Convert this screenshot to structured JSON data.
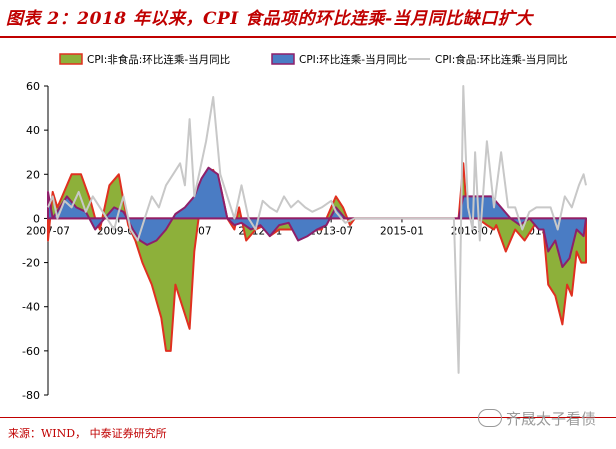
{
  "header": {
    "title": "图表 2：2018 年以来，CPI 食品项的环比连乘-当月同比缺口扩大"
  },
  "footer": {
    "source": "来源：WIND， 中泰证券研究所"
  },
  "watermark": {
    "text": "齐晟太子看债"
  },
  "chart_data": {
    "type": "area",
    "ylim": [
      -80,
      60
    ],
    "yticks": [
      -80,
      -60,
      -40,
      -20,
      0,
      20,
      40,
      60
    ],
    "xlim": [
      2007.5,
      2018.9
    ],
    "xticks": [
      {
        "x": 2007.5,
        "label": "2007-07"
      },
      {
        "x": 2009.0,
        "label": "2009-01"
      },
      {
        "x": 2010.5,
        "label": "2010-07"
      },
      {
        "x": 2012.0,
        "label": "2012-01"
      },
      {
        "x": 2013.5,
        "label": "2013-07"
      },
      {
        "x": 2015.0,
        "label": "2015-01"
      },
      {
        "x": 2016.5,
        "label": "2016-07"
      },
      {
        "x": 2018.0,
        "label": "2018-01"
      }
    ],
    "legend_position": "top",
    "legend": [
      {
        "key": "food_gap",
        "label": "CPI:非食品:环比连乘-当月同比",
        "color": "#8db03a",
        "edge": "#e03020",
        "kind": "area"
      },
      {
        "key": "total_gap",
        "label": "CPI:环比连乘-当月同比",
        "color": "#4a7cc4",
        "edge": "#8e1f6a",
        "kind": "area"
      },
      {
        "key": "food",
        "label": "CPI:食品:环比连乘-当月同比",
        "color": "#c8c8c8",
        "kind": "line"
      }
    ],
    "series": [
      {
        "key": "food_gap",
        "x": [
          2007.5,
          2007.6,
          2007.7,
          2007.8,
          2008.0,
          2008.2,
          2008.4,
          2008.5,
          2008.6,
          2008.8,
          2009.0,
          2009.1,
          2009.2,
          2009.35,
          2009.5,
          2009.7,
          2009.9,
          2010.0,
          2010.1,
          2010.2,
          2010.35,
          2010.5,
          2010.6,
          2010.75,
          2010.85,
          2011.0,
          2011.15,
          2011.3,
          2011.45,
          2011.55,
          2011.7,
          2011.9,
          2012.1,
          2012.2,
          2012.4,
          2012.7,
          2012.9,
          2013.1,
          2013.3,
          2013.5,
          2013.6,
          2013.75,
          2013.9,
          2014.0,
          2016.2,
          2016.3,
          2016.35,
          2016.45,
          2016.6,
          2016.8,
          2016.95,
          2017.0,
          2017.2,
          2017.4,
          2017.6,
          2017.75,
          2017.9,
          2018.0,
          2018.1,
          2018.25,
          2018.4,
          2018.5,
          2018.6,
          2018.7,
          2018.8,
          2018.9
        ],
        "y": [
          -10,
          12,
          5,
          10,
          20,
          20,
          8,
          0,
          -5,
          15,
          20,
          8,
          -3,
          -10,
          -20,
          -30,
          -45,
          -60,
          -60,
          -30,
          -40,
          -50,
          -15,
          10,
          20,
          22,
          15,
          0,
          -5,
          5,
          -10,
          -5,
          -3,
          -8,
          -5,
          -5,
          0,
          -5,
          -5,
          5,
          10,
          5,
          -3,
          0,
          0,
          25,
          10,
          5,
          0,
          -3,
          -5,
          -3,
          -15,
          -5,
          -10,
          -5,
          0,
          -5,
          -30,
          -35,
          -48,
          -30,
          -35,
          -15,
          -20,
          -20
        ]
      },
      {
        "key": "total_gap",
        "x": [
          2007.5,
          2007.6,
          2007.75,
          2007.9,
          2008.1,
          2008.3,
          2008.5,
          2008.7,
          2008.9,
          2009.1,
          2009.3,
          2009.45,
          2009.6,
          2009.8,
          2010.0,
          2010.2,
          2010.4,
          2010.6,
          2010.75,
          2010.9,
          2011.1,
          2011.3,
          2011.45,
          2011.6,
          2011.8,
          2012.0,
          2012.2,
          2012.4,
          2012.6,
          2012.8,
          2013.0,
          2013.2,
          2013.4,
          2013.6,
          2013.8,
          2014.0,
          2016.2,
          2016.3,
          2016.5,
          2016.7,
          2016.9,
          2017.1,
          2017.3,
          2017.5,
          2017.7,
          2017.9,
          2018.0,
          2018.1,
          2018.25,
          2018.4,
          2018.55,
          2018.7,
          2018.85,
          2018.9
        ],
        "y": [
          12,
          0,
          5,
          10,
          5,
          3,
          -5,
          0,
          5,
          3,
          -5,
          -10,
          -12,
          -10,
          -5,
          2,
          5,
          10,
          18,
          23,
          20,
          0,
          -3,
          -2,
          -5,
          -3,
          -8,
          -3,
          -2,
          -10,
          -8,
          -5,
          -3,
          5,
          0,
          0,
          0,
          10,
          10,
          10,
          10,
          5,
          0,
          -3,
          0,
          -5,
          -5,
          -15,
          -10,
          -22,
          -18,
          -5,
          -8,
          0
        ]
      },
      {
        "key": "food",
        "x": [
          2007.5,
          2007.6,
          2007.7,
          2007.85,
          2008.0,
          2008.15,
          2008.3,
          2008.45,
          2008.6,
          2008.75,
          2008.9,
          2009.0,
          2009.1,
          2009.25,
          2009.4,
          2009.55,
          2009.7,
          2009.85,
          2010.0,
          2010.15,
          2010.3,
          2010.4,
          2010.5,
          2010.6,
          2010.75,
          2010.85,
          2011.0,
          2011.15,
          2011.3,
          2011.45,
          2011.6,
          2011.75,
          2011.9,
          2012.05,
          2012.2,
          2012.35,
          2012.5,
          2012.65,
          2012.8,
          2012.95,
          2013.1,
          2013.3,
          2013.5,
          2013.6,
          2013.8,
          2014.0,
          2016.1,
          2016.2,
          2016.3,
          2016.35,
          2016.4,
          2016.5,
          2016.55,
          2016.65,
          2016.8,
          2016.95,
          2017.1,
          2017.25,
          2017.4,
          2017.55,
          2017.7,
          2017.85,
          2018.0,
          2018.15,
          2018.3,
          2018.45,
          2018.6,
          2018.75,
          2018.85,
          2018.9
        ],
        "y": [
          5,
          10,
          0,
          8,
          5,
          12,
          3,
          10,
          5,
          0,
          -5,
          3,
          10,
          -5,
          -10,
          0,
          10,
          5,
          15,
          20,
          25,
          15,
          45,
          10,
          25,
          35,
          55,
          20,
          10,
          0,
          15,
          0,
          -5,
          8,
          5,
          3,
          10,
          5,
          8,
          5,
          3,
          5,
          8,
          3,
          -2,
          0,
          0,
          -70,
          60,
          30,
          5,
          -5,
          30,
          -10,
          35,
          5,
          30,
          5,
          5,
          -5,
          3,
          5,
          5,
          5,
          -5,
          10,
          5,
          15,
          20,
          15
        ]
      }
    ]
  }
}
